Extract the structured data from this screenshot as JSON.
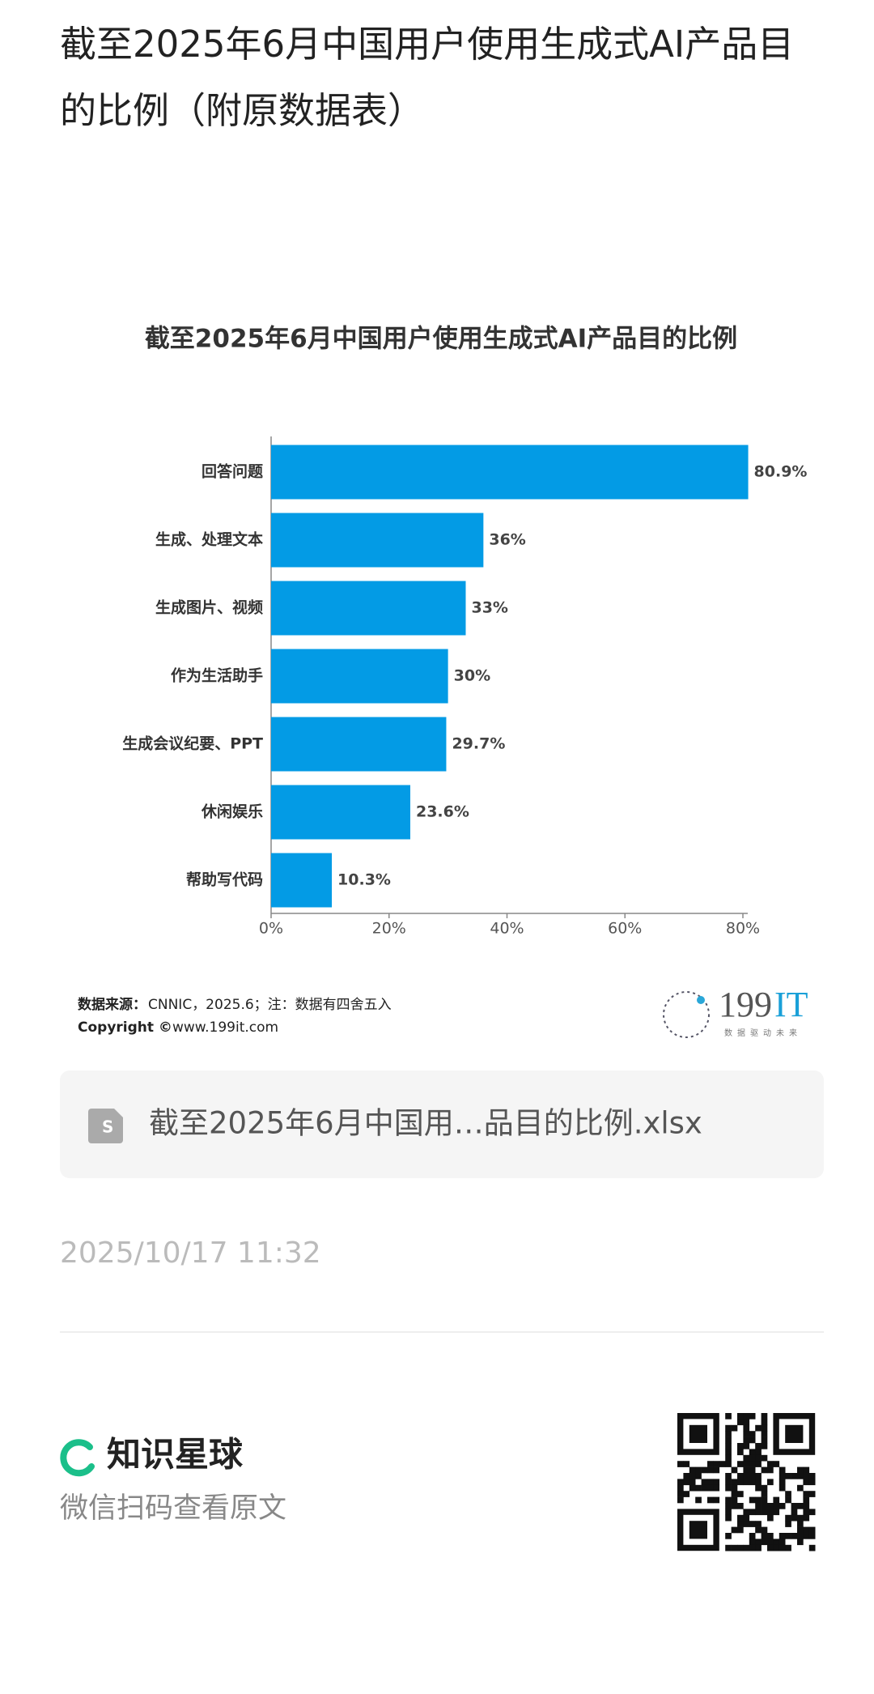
{
  "header": {
    "title": "截至2025年6月中国用户使用生成式AI产品目的比例（附原数据表）"
  },
  "chart_data": {
    "type": "bar",
    "orientation": "horizontal",
    "title": "截至2025年6月中国用户使用生成式AI产品目的比例",
    "categories": [
      "回答问题",
      "生成、处理文本",
      "生成图片、视频",
      "作为生活助手",
      "生成会议纪要、PPT",
      "休闲娱乐",
      "帮助写代码"
    ],
    "values": [
      80.9,
      36,
      33,
      30,
      29.7,
      23.6,
      10.3
    ],
    "value_labels": [
      "80.9%",
      "36%",
      "33%",
      "30%",
      "29.7%",
      "23.6%",
      "10.3%"
    ],
    "color": "#039be5",
    "xlim": [
      0,
      80
    ],
    "xticks": [
      {
        "value": 0,
        "label": "0%"
      },
      {
        "value": 20,
        "label": "20%"
      },
      {
        "value": 40,
        "label": "40%"
      },
      {
        "value": 60,
        "label": "60%"
      },
      {
        "value": 80,
        "label": "80%"
      }
    ],
    "grid": false
  },
  "source": {
    "label": "数据来源：",
    "text": "CNNIC，2025.6；注：数据有四舍五入",
    "copyright_label": "Copyright ©",
    "copyright_text": "www.199it.com"
  },
  "logo": {
    "number": "199",
    "letters": "IT",
    "slogan": "数据驱动未来"
  },
  "file": {
    "name": "截至2025年6月中国用…品目的比例.xlsx"
  },
  "timestamp": "2025/10/17 11:32",
  "footer": {
    "brand": "知识星球",
    "hint": "微信扫码查看原文"
  }
}
